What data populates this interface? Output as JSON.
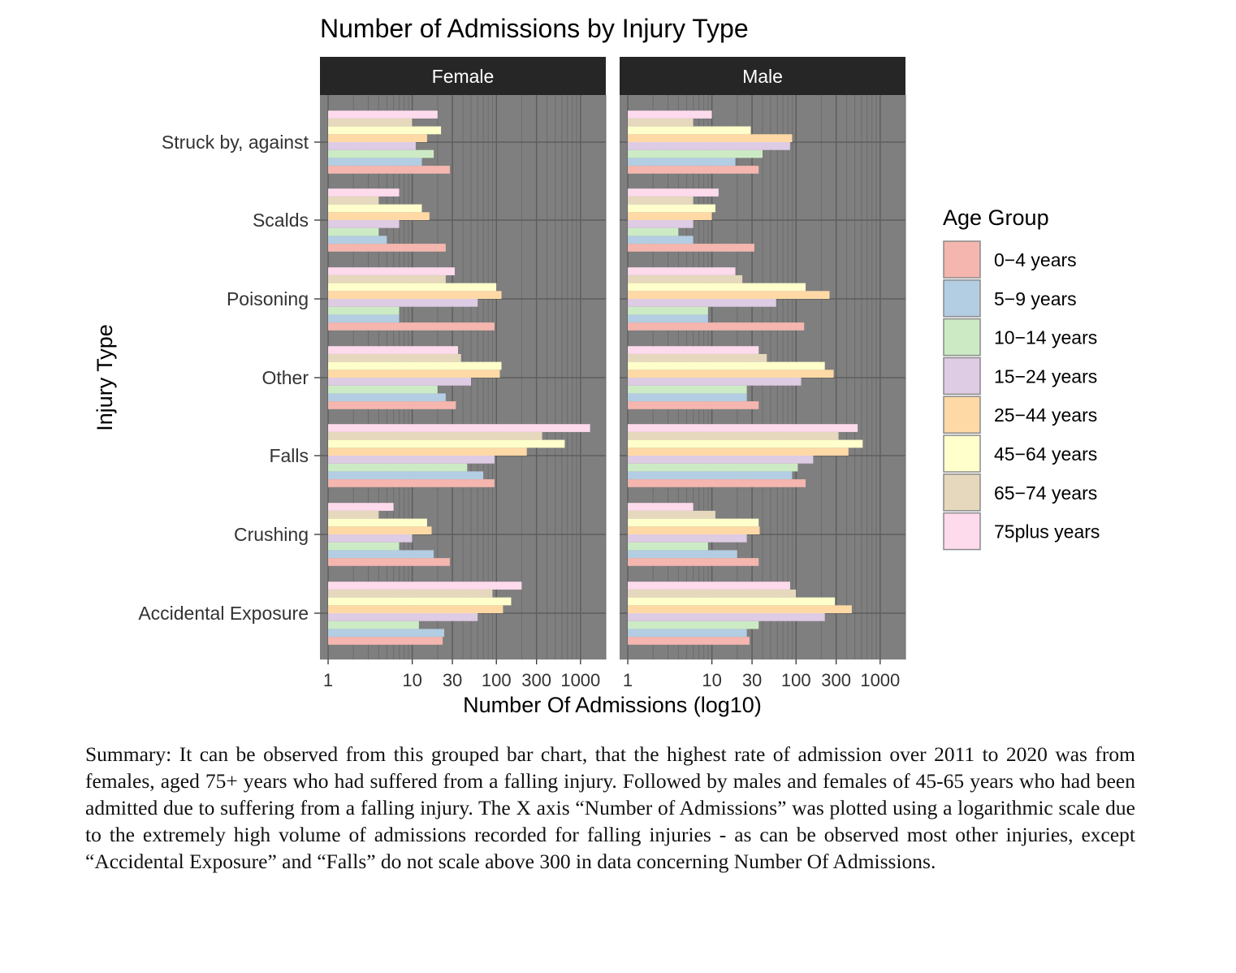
{
  "chart_data": {
    "type": "bar",
    "orientation": "horizontal",
    "title": "Number of Admissions by Injury Type",
    "xlabel": "Number Of Admissions (log10)",
    "ylabel": "Injury Type",
    "x_scale": "log10",
    "xlim": [
      0.8,
      2000
    ],
    "x_ticks": [
      1,
      10,
      30,
      100,
      300,
      1000
    ],
    "x_tick_labels": [
      "1",
      "10",
      "30",
      "100",
      "300",
      "1000"
    ],
    "grid": true,
    "legend_position": "right",
    "facets": [
      "Female",
      "Male"
    ],
    "categories": [
      "Struck by, against",
      "Scalds",
      "Poisoning",
      "Other",
      "Falls",
      "Crushing",
      "Accidental Exposure"
    ],
    "legend_title": "Age Group",
    "series": [
      {
        "name": "0−4 years",
        "color": "#F4B6AE",
        "values": {
          "Female": [
            28,
            25,
            95,
            33,
            95,
            28,
            23
          ],
          "Male": [
            36,
            32,
            125,
            36,
            130,
            36,
            28
          ]
        }
      },
      {
        "name": "5−9 years",
        "color": "#B3CDE3",
        "values": {
          "Female": [
            13,
            5,
            7,
            25,
            70,
            18,
            24
          ],
          "Male": [
            19,
            6,
            9,
            26,
            90,
            20,
            26
          ]
        }
      },
      {
        "name": "10−14 years",
        "color": "#CCEBC5",
        "values": {
          "Female": [
            18,
            4,
            7,
            20,
            45,
            7,
            12
          ],
          "Male": [
            40,
            4,
            9,
            26,
            105,
            9,
            36
          ]
        }
      },
      {
        "name": "15−24 years",
        "color": "#DECBE4",
        "values": {
          "Female": [
            11,
            7,
            60,
            50,
            95,
            10,
            60
          ],
          "Male": [
            85,
            6,
            58,
            115,
            160,
            26,
            220
          ]
        }
      },
      {
        "name": "25−44 years",
        "color": "#FED9A6",
        "values": {
          "Female": [
            15,
            16,
            115,
            110,
            230,
            17,
            120
          ],
          "Male": [
            90,
            10,
            250,
            280,
            420,
            37,
            460
          ]
        }
      },
      {
        "name": "45−64 years",
        "color": "#FFFFCC",
        "values": {
          "Female": [
            22,
            13,
            100,
            115,
            650,
            15,
            150
          ],
          "Male": [
            29,
            11,
            130,
            220,
            620,
            36,
            290
          ]
        }
      },
      {
        "name": "65−74 years",
        "color": "#E5D8BD",
        "values": {
          "Female": [
            10,
            4,
            25,
            38,
            350,
            4,
            90
          ],
          "Male": [
            6,
            6,
            23,
            45,
            320,
            11,
            100
          ]
        }
      },
      {
        "name": "75plus years",
        "color": "#FDDAEC",
        "values": {
          "Female": [
            20,
            7,
            32,
            35,
            1300,
            6,
            200
          ],
          "Male": [
            10,
            12,
            19,
            36,
            540,
            6,
            85
          ]
        }
      }
    ]
  },
  "summary": "Summary: It can be observed from this grouped bar chart, that the highest rate of admission over 2011 to 2020 was from females, aged 75+ years who had suffered from a falling injury. Followed by males and females of 45-65 years who had been admitted due to suffering from a falling injury. The X axis “Number of Admissions” was plotted using a logarithmic scale due to the extremely high volume of admissions recorded for falling injuries - as can be observed most other injuries, except “Accidental Exposure” and “Falls” do not scale above 300 in data concerning Number Of Admissions."
}
